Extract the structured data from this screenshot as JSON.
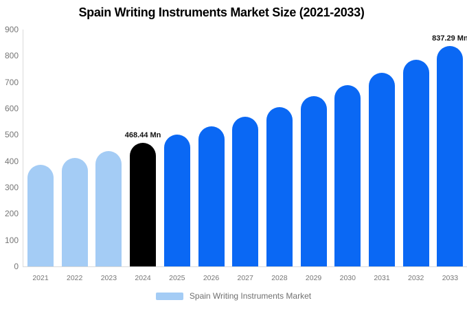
{
  "chart_data": {
    "type": "bar",
    "title": "Spain Writing Instruments Market Size (2021-2033)",
    "categories": [
      "2021",
      "2022",
      "2023",
      "2024",
      "2025",
      "2026",
      "2027",
      "2028",
      "2029",
      "2030",
      "2031",
      "2032",
      "2033"
    ],
    "values": [
      386.0,
      411.7,
      439.2,
      468.44,
      499.7,
      533.0,
      568.5,
      606.4,
      646.8,
      689.9,
      735.9,
      784.9,
      837.29
    ],
    "unit": "Mn",
    "xlabel": "",
    "ylabel": "",
    "ylim": [
      0,
      900
    ],
    "ytick_step": 100,
    "yticks": [
      "0",
      "100",
      "200",
      "300",
      "400",
      "500",
      "600",
      "700",
      "800",
      "900"
    ],
    "grid": false,
    "bar_colors": [
      "#a4ccf5",
      "#a4ccf5",
      "#a4ccf5",
      "#000000",
      "#0a68f4",
      "#0a68f4",
      "#0a68f4",
      "#0a68f4",
      "#0a68f4",
      "#0a68f4",
      "#0a68f4",
      "#0a68f4",
      "#0a68f4"
    ],
    "annotations": [
      {
        "category": "2024",
        "text": "468.44 Mn"
      },
      {
        "category": "2033",
        "text": "837.29 Mn"
      }
    ],
    "legend": {
      "position": "bottom",
      "label": "Spain Writing Instruments Market",
      "swatch_color": "#a4ccf5"
    }
  },
  "colors": {
    "background": "#ffffff",
    "axis_line": "#d9d9d9",
    "tick_text": "#757575",
    "title_text": "#000000",
    "annotation_text": "#111111",
    "legend_text": "#6f6f6f",
    "bar_light": "#a4ccf5",
    "bar_highlight": "#000000",
    "bar_primary": "#0a68f4"
  }
}
